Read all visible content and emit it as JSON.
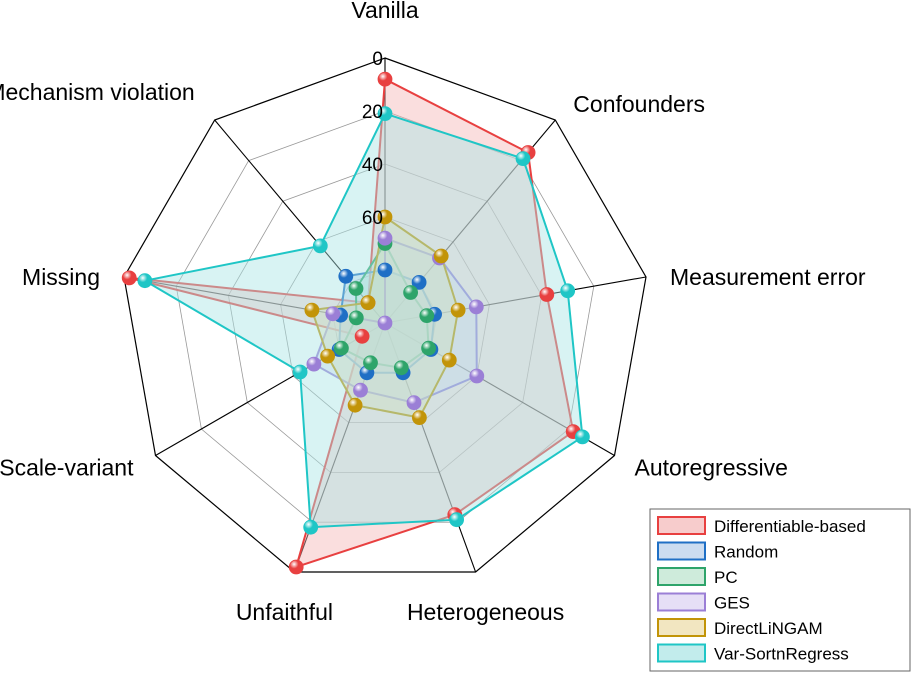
{
  "chart_data": {
    "type": "radar",
    "axes": [
      "Vanilla",
      "Confounders",
      "Measurement error",
      "Autoregressive",
      "Heterogeneous",
      "Unfaithful",
      "Scale-variant",
      "Missing",
      "Mechanism violation"
    ],
    "ticks": [
      "0",
      "20",
      "40",
      "60"
    ],
    "radial_range": [
      0,
      100
    ],
    "radial_direction": "reversed (0 at outer edge)",
    "grid": true,
    "legend_position": "bottom-right",
    "series": [
      {
        "name": "Differentiable-based",
        "color": "#e84040",
        "fill": "#f4b6b6",
        "values": [
          8,
          16,
          38,
          18,
          23,
          2,
          90,
          2,
          90
        ]
      },
      {
        "name": "Random",
        "color": "#1f6fc5",
        "fill": "#b5cdea",
        "values": [
          80,
          80,
          81,
          80,
          80,
          80,
          80,
          83,
          77
        ]
      },
      {
        "name": "PC",
        "color": "#2ea46a",
        "fill": "#b9e3cc",
        "values": [
          70,
          85,
          84,
          81,
          82,
          84,
          81,
          89,
          83
        ]
      },
      {
        "name": "GES",
        "color": "#9b7fd6",
        "fill": "#dcd2f2",
        "values": [
          68,
          68,
          65,
          60,
          68,
          73,
          69,
          80,
          100
        ]
      },
      {
        "name": "DirectLiNGAM",
        "color": "#c29408",
        "fill": "#ecdba6",
        "values": [
          60,
          67,
          72,
          72,
          62,
          67,
          75,
          72,
          90
        ]
      },
      {
        "name": "Var-SortnRegress",
        "color": "#1fc6c6",
        "fill": "#a8e4e4",
        "values": [
          21,
          19,
          30,
          14,
          21,
          18,
          63,
          8,
          62
        ]
      }
    ]
  }
}
